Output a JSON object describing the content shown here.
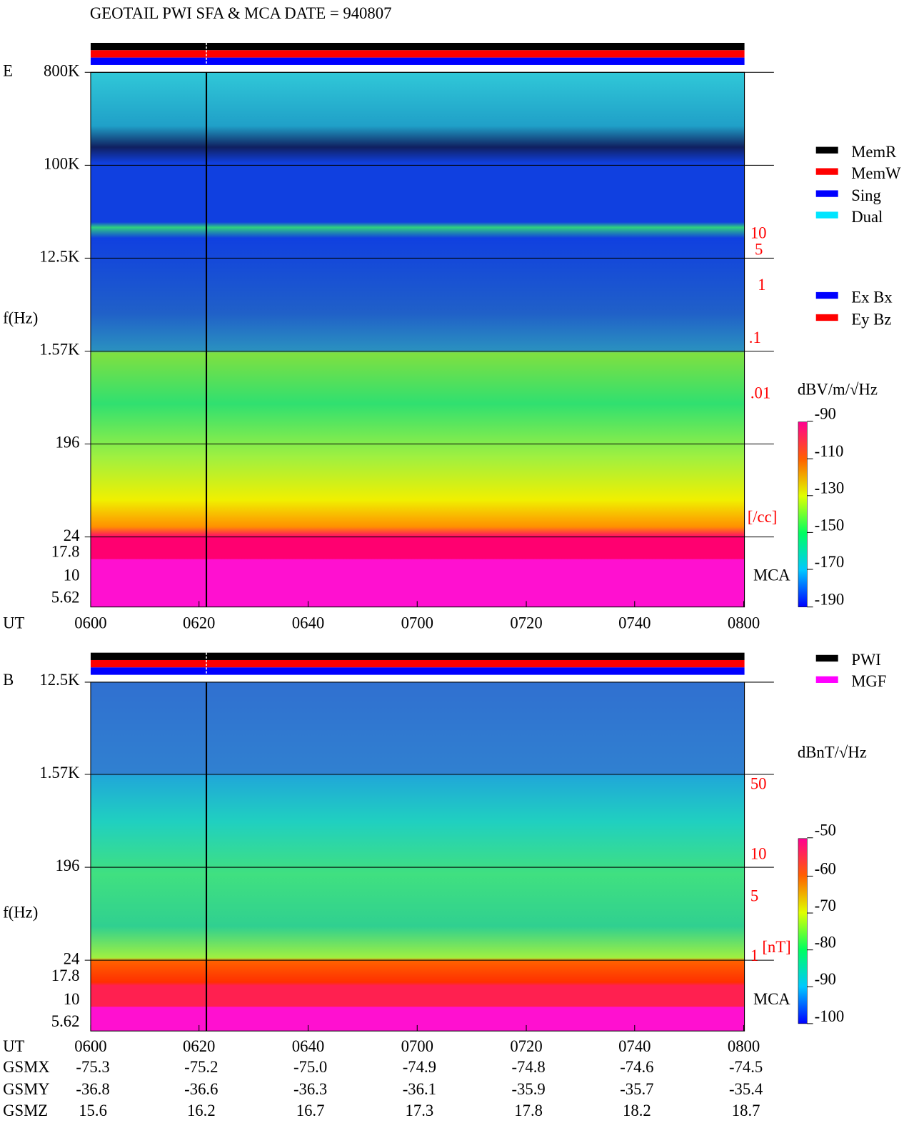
{
  "title": "GEOTAIL  PWI SFA & MCA   DATE = 940807",
  "panels": [
    {
      "label": "E",
      "ylabel": "f(Hz)",
      "time_label": "UT",
      "freq_labels": [
        "800K",
        "100K",
        "12.5K",
        "1.57K",
        "196",
        "24",
        "17.8",
        "10",
        "5.62"
      ],
      "times": [
        "0600",
        "0620",
        "0640",
        "0700",
        "0720",
        "0740",
        "0800"
      ],
      "side_labels": [
        "10",
        "5",
        "1",
        ".1",
        ".01",
        "[/cc]"
      ],
      "mca_label": "MCA",
      "legend": [
        {
          "name": "MemR",
          "color": "#000000"
        },
        {
          "name": "MemW",
          "color": "#ff0000"
        },
        {
          "name": "Sing",
          "color": "#0000ff"
        },
        {
          "name": "Dual",
          "color": "#00e5ff"
        }
      ],
      "legend2": [
        {
          "name": "Ex Bx",
          "color": "#0000ff"
        },
        {
          "name": "Ey Bz",
          "color": "#ff0000"
        }
      ],
      "colorbar_unit": "dBV/m/√Hz",
      "colorbar_ticks": [
        -90,
        -110,
        -130,
        -150,
        -170,
        -190
      ]
    },
    {
      "label": "B",
      "ylabel": "f(Hz)",
      "time_label": "UT",
      "freq_labels": [
        "12.5K",
        "1.57K",
        "196",
        "24",
        "17.8",
        "10",
        "5.62"
      ],
      "times": [
        "0600",
        "0620",
        "0640",
        "0700",
        "0720",
        "0740",
        "0800"
      ],
      "side_labels": [
        "50",
        "10",
        "5",
        "1",
        "[nT]"
      ],
      "mca_label": "MCA",
      "legend": [
        {
          "name": "PWI",
          "color": "#000000"
        },
        {
          "name": "MGF",
          "color": "#ff00ff"
        }
      ],
      "colorbar_unit": "dBnT/√Hz",
      "colorbar_ticks": [
        -50,
        -60,
        -70,
        -80,
        -90,
        -100
      ]
    }
  ],
  "orbit": [
    {
      "label": "GSMX",
      "values": [
        "-75.3",
        "-75.2",
        "-75.0",
        "-74.9",
        "-74.8",
        "-74.6",
        "-74.5"
      ]
    },
    {
      "label": "GSMY",
      "values": [
        "-36.8",
        "-36.6",
        "-36.3",
        "-36.1",
        "-35.9",
        "-35.7",
        "-35.4"
      ]
    },
    {
      "label": "GSMZ",
      "values": [
        "15.6",
        "16.2",
        "16.7",
        "17.3",
        "17.8",
        "18.2",
        "18.7"
      ]
    }
  ]
}
